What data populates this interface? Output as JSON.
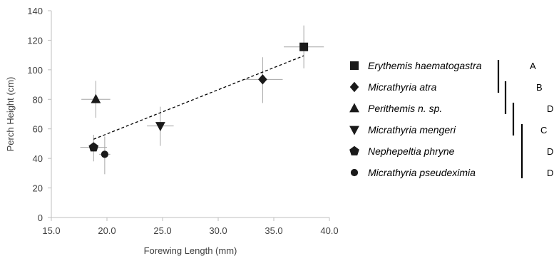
{
  "chart_data": {
    "type": "scatter",
    "title": "",
    "xlabel": "Forewing Length (mm)",
    "ylabel": "Perch Height (cm)",
    "xlim": [
      15,
      40
    ],
    "ylim": [
      0,
      140
    ],
    "x_ticks": [
      "15.0",
      "20.0",
      "25.0",
      "30.0",
      "35.0",
      "40.0"
    ],
    "y_ticks": [
      "0",
      "20",
      "40",
      "60",
      "80",
      "100",
      "120",
      "140"
    ],
    "grid": false,
    "legend_position": "right",
    "colors": {
      "marker": "#1a1a1a",
      "error_bar": "#a6a6a6",
      "axis": "#bfbfbf",
      "trendline": "#000000"
    },
    "series": [
      {
        "name": "Erythemis haematogastra",
        "marker": "square",
        "x": 37.7,
        "y": 115.5,
        "x_err": 1.8,
        "y_err_plus": 14.5,
        "y_err_minus": 14.5,
        "group": "A"
      },
      {
        "name": "Micrathyria atra",
        "marker": "diamond",
        "x": 34.0,
        "y": 93.5,
        "x_err": 1.8,
        "y_err_plus": 15,
        "y_err_minus": 16,
        "group": "B"
      },
      {
        "name": "Perithemis n. sp.",
        "marker": "triangle-up",
        "x": 19.0,
        "y": 80.0,
        "x_err": 1.3,
        "y_err_plus": 12.5,
        "y_err_minus": 12.5,
        "group": "D"
      },
      {
        "name": "Micrathyria mengeri",
        "marker": "triangle-down",
        "x": 24.8,
        "y": 62.0,
        "x_err": 1.2,
        "y_err_plus": 13,
        "y_err_minus": 13.5,
        "group": "C"
      },
      {
        "name": "Nephepeltia phryne",
        "marker": "pentagon",
        "x": 18.8,
        "y": 47.5,
        "x_err": 1.2,
        "y_err_plus": 8.5,
        "y_err_minus": 9.5,
        "group": "D"
      },
      {
        "name": "Micrathyria pseudeximia",
        "marker": "circle",
        "x": 19.8,
        "y": 42.8,
        "x_err": 0.5,
        "y_err_plus": 12,
        "y_err_minus": 13.5,
        "group": "D"
      }
    ],
    "trendline": {
      "style": "dashed",
      "from": [
        18.8,
        53.0
      ],
      "to": [
        37.7,
        109.5
      ]
    }
  }
}
